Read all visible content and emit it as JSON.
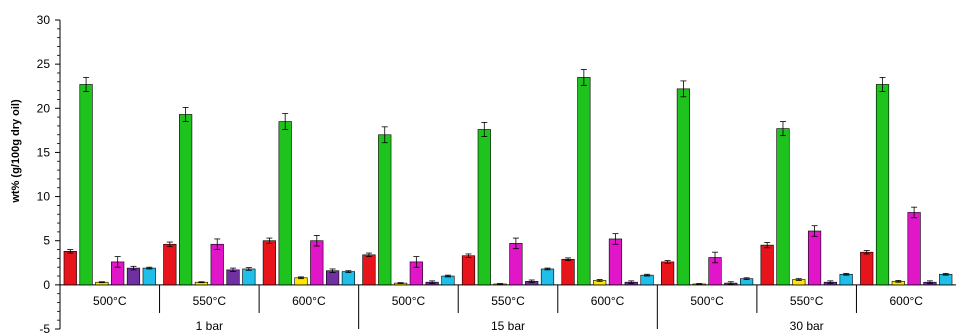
{
  "chart_data": {
    "type": "bar",
    "ylabel": "wt% (g/100g dry oil)",
    "ylim": [
      -5,
      30
    ],
    "yticks": [
      -5,
      0,
      5,
      10,
      15,
      20,
      25,
      30
    ],
    "grid": false,
    "legend": "none",
    "categories": [
      {
        "temperature": "500°C",
        "pressure": "1 bar"
      },
      {
        "temperature": "550°C",
        "pressure": "1 bar"
      },
      {
        "temperature": "600°C",
        "pressure": "1 bar"
      },
      {
        "temperature": "500°C",
        "pressure": "15 bar"
      },
      {
        "temperature": "550°C",
        "pressure": "15 bar"
      },
      {
        "temperature": "600°C",
        "pressure": "15 bar"
      },
      {
        "temperature": "500°C",
        "pressure": "30 bar"
      },
      {
        "temperature": "550°C",
        "pressure": "30 bar"
      },
      {
        "temperature": "600°C",
        "pressure": "30 bar"
      }
    ],
    "pressure_groups": [
      "1 bar",
      "15 bar",
      "30 bar"
    ],
    "series": [
      {
        "color": "#e8141b",
        "values": [
          3.8,
          4.6,
          5.0,
          3.4,
          3.3,
          2.9,
          2.6,
          4.5,
          3.7
        ],
        "errors": [
          0.2,
          0.25,
          0.3,
          0.2,
          0.2,
          0.15,
          0.15,
          0.3,
          0.2
        ]
      },
      {
        "color": "#1ec31e",
        "values": [
          22.7,
          19.3,
          18.5,
          17.0,
          17.6,
          23.5,
          22.2,
          17.7,
          22.7
        ],
        "errors": [
          0.8,
          0.8,
          0.9,
          0.9,
          0.8,
          0.9,
          0.9,
          0.8,
          0.8
        ]
      },
      {
        "color": "#ffe600",
        "values": [
          0.3,
          0.3,
          0.8,
          0.2,
          0.1,
          0.5,
          0.1,
          0.6,
          0.4
        ],
        "errors": [
          0.05,
          0.05,
          0.1,
          0.05,
          0.05,
          0.1,
          0.05,
          0.1,
          0.1
        ]
      },
      {
        "color": "#e016c8",
        "values": [
          2.6,
          4.6,
          5.0,
          2.6,
          4.7,
          5.2,
          3.1,
          6.1,
          8.2
        ],
        "errors": [
          0.6,
          0.6,
          0.6,
          0.6,
          0.6,
          0.6,
          0.6,
          0.6,
          0.6
        ]
      },
      {
        "color": "#7030a0",
        "values": [
          1.9,
          1.7,
          1.6,
          0.3,
          0.4,
          0.3,
          0.2,
          0.3,
          0.3
        ],
        "errors": [
          0.2,
          0.2,
          0.2,
          0.15,
          0.15,
          0.15,
          0.15,
          0.15,
          0.15
        ]
      },
      {
        "color": "#1fbfea",
        "values": [
          1.9,
          1.8,
          1.5,
          1.0,
          1.8,
          1.1,
          0.7,
          1.2,
          1.2
        ],
        "errors": [
          0.1,
          0.15,
          0.1,
          0.1,
          0.1,
          0.1,
          0.1,
          0.1,
          0.1
        ]
      }
    ]
  }
}
